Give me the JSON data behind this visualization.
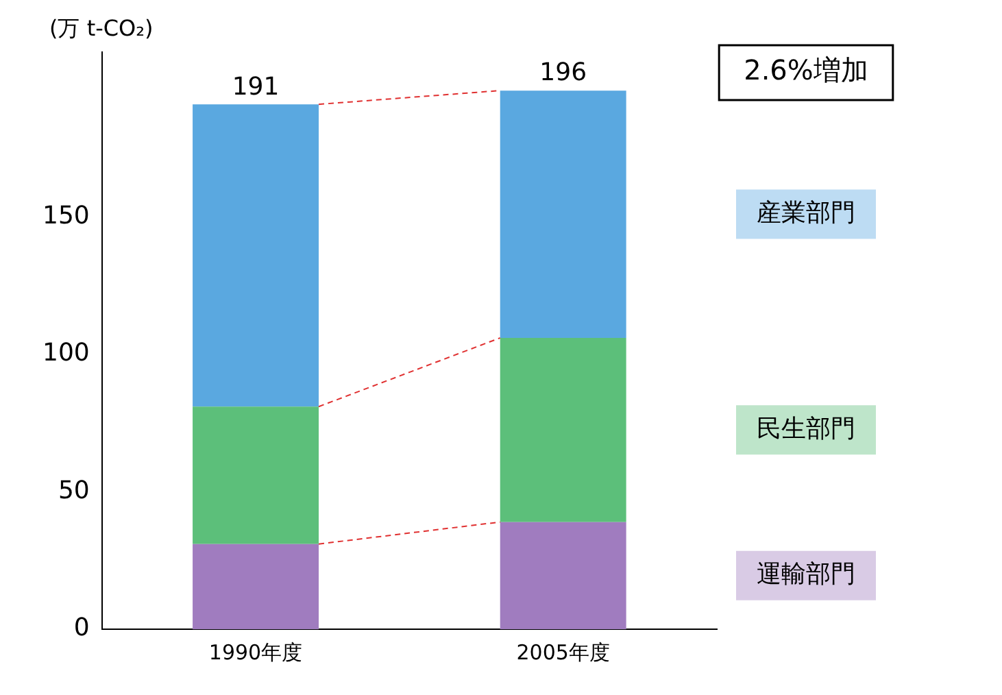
{
  "chart_data": {
    "type": "bar",
    "stacked": true,
    "ylabel": "(万 t-CO₂)",
    "categories": [
      "1990年度",
      "2005年度"
    ],
    "series": [
      {
        "name": "運輸部門",
        "color": "#a07cbf",
        "values": [
          31,
          39
        ]
      },
      {
        "name": "民生部門",
        "color": "#5cbf7a",
        "values": [
          50,
          67
        ]
      },
      {
        "name": "産業部門",
        "color": "#5aa8e0",
        "values": [
          110,
          90
        ]
      }
    ],
    "totals": [
      "191",
      "196"
    ],
    "annotations": [
      "2.6%増加"
    ],
    "ylim": [
      0,
      210
    ],
    "yticks": [
      0,
      50,
      100,
      150
    ],
    "grid": false,
    "legend": "right"
  }
}
